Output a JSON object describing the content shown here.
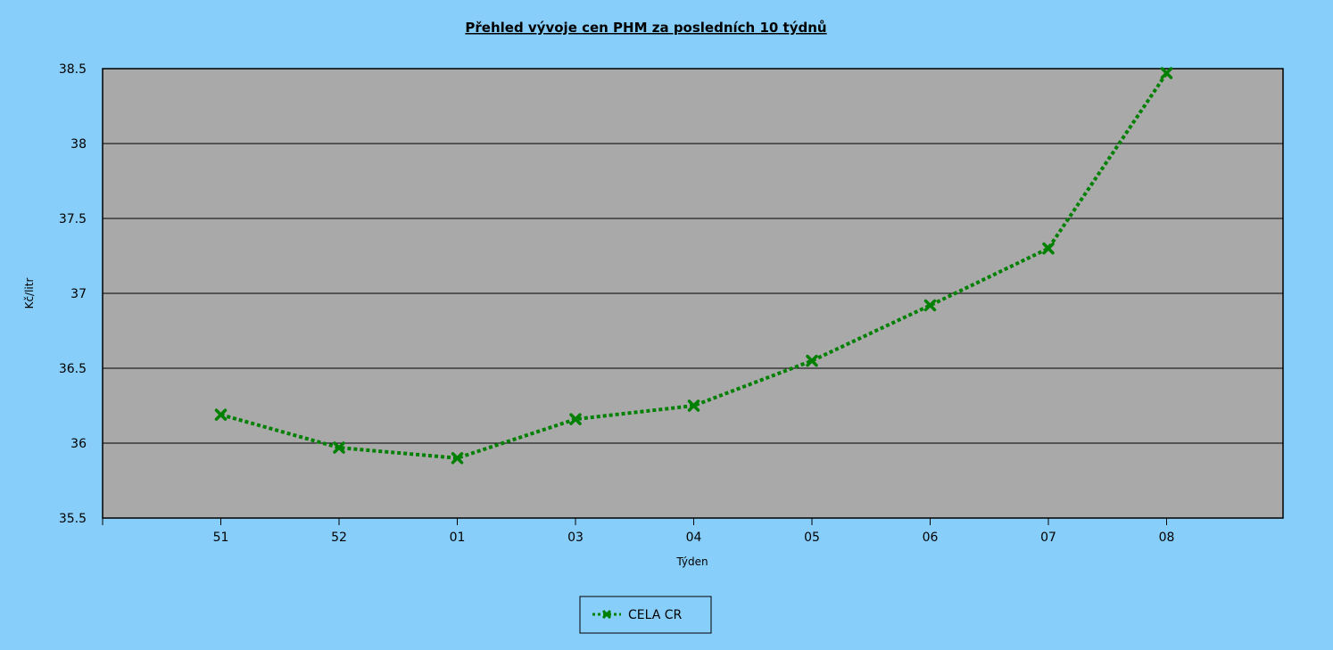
{
  "chart_data": {
    "type": "line",
    "title": "Přehled vývoje cen PHM za posledních 10 týdnů",
    "xlabel": "Týden",
    "ylabel": "Kč/litr",
    "categories": [
      "51",
      "52",
      "01",
      "03",
      "04",
      "05",
      "06",
      "07",
      "08"
    ],
    "series": [
      {
        "name": "CELA CR",
        "values": [
          36.19,
          35.97,
          35.9,
          36.16,
          36.25,
          36.55,
          36.92,
          37.3,
          38.47
        ],
        "color": "#008000",
        "line_style": "dotted",
        "marker": "x"
      }
    ],
    "ylim": [
      35.5,
      38.5
    ],
    "yticks": [
      "35.5",
      "36",
      "36.5",
      "37",
      "37.5",
      "38",
      "38.5"
    ],
    "grid": true,
    "plot_background": "#a9a9a9",
    "page_background": "#87cefa",
    "legend_position": "bottom-center"
  }
}
